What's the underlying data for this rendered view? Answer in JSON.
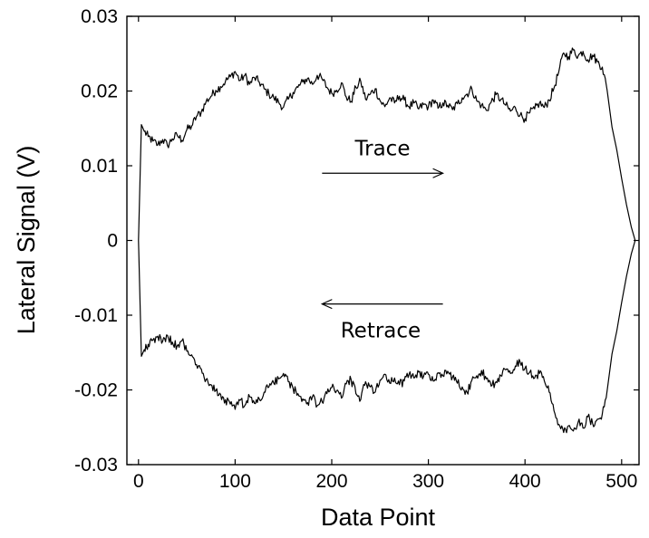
{
  "chart_data": {
    "type": "line",
    "xlabel": "Data Point",
    "ylabel": "Lateral Signal (V)",
    "xlim": [
      -12,
      518
    ],
    "ylim": [
      -0.03,
      0.03
    ],
    "xticks": [
      0,
      100,
      200,
      300,
      400,
      500
    ],
    "yticks": [
      -0.03,
      -0.02,
      -0.01,
      0,
      0.01,
      0.02,
      0.03
    ],
    "xtick_labels": [
      "0",
      "100",
      "200",
      "300",
      "400",
      "500"
    ],
    "ytick_labels": [
      "-0.03",
      "-0.02",
      "-0.01",
      "0",
      "0.01",
      "0.02",
      "0.03"
    ],
    "grid": false,
    "legend": "none",
    "line_color": "#000000",
    "annotations": [
      {
        "text": "Trace",
        "arrow": "right",
        "x_from": 190,
        "x_to": 315,
        "y": 0.009
      },
      {
        "text": "Retrace",
        "arrow": "left",
        "x_from": 315,
        "x_to": 190,
        "y": -0.0085
      }
    ],
    "series": [
      {
        "x": [
          0,
          3,
          6,
          10,
          15,
          20,
          25,
          30,
          35,
          40,
          45,
          50,
          55,
          60,
          65,
          70,
          75,
          80,
          85,
          90,
          95,
          100,
          105,
          110,
          115,
          120,
          125,
          130,
          135,
          140,
          145,
          150,
          155,
          160,
          165,
          170,
          175,
          180,
          185,
          190,
          195,
          200,
          205,
          210,
          215,
          220,
          225,
          230,
          235,
          240,
          245,
          250,
          255,
          260,
          265,
          270,
          275,
          280,
          285,
          290,
          295,
          300,
          305,
          310,
          315,
          320,
          325,
          330,
          335,
          340,
          345,
          350,
          355,
          360,
          365,
          370,
          375,
          380,
          385,
          390,
          395,
          400,
          405,
          410,
          415,
          420,
          425,
          430,
          435,
          440,
          445,
          450,
          455,
          460,
          465,
          470,
          475,
          480,
          485,
          490,
          495,
          500,
          505,
          510,
          514
        ],
        "values": [
          0,
          0.0155,
          0.0146,
          0.0139,
          0.0133,
          0.0128,
          0.0135,
          0.0127,
          0.0136,
          0.0141,
          0.0134,
          0.0148,
          0.0153,
          0.0166,
          0.0172,
          0.0186,
          0.0193,
          0.0201,
          0.0206,
          0.0213,
          0.0219,
          0.0226,
          0.0214,
          0.0221,
          0.0209,
          0.0218,
          0.0212,
          0.0203,
          0.0196,
          0.0191,
          0.0185,
          0.0178,
          0.0189,
          0.0198,
          0.0205,
          0.0212,
          0.0217,
          0.0209,
          0.0221,
          0.0216,
          0.0205,
          0.0197,
          0.0201,
          0.0211,
          0.0192,
          0.0186,
          0.0205,
          0.0213,
          0.0189,
          0.0196,
          0.0203,
          0.0187,
          0.0179,
          0.0191,
          0.0184,
          0.0193,
          0.0188,
          0.0179,
          0.0184,
          0.0176,
          0.0182,
          0.0179,
          0.0188,
          0.0177,
          0.0184,
          0.0181,
          0.0175,
          0.0183,
          0.0191,
          0.0196,
          0.0203,
          0.0187,
          0.0181,
          0.0174,
          0.0185,
          0.0195,
          0.0189,
          0.0181,
          0.0173,
          0.0178,
          0.0168,
          0.0163,
          0.0171,
          0.0176,
          0.0184,
          0.0178,
          0.0188,
          0.0204,
          0.0226,
          0.0251,
          0.0246,
          0.0255,
          0.0247,
          0.0253,
          0.0242,
          0.0248,
          0.0239,
          0.0232,
          0.0201,
          0.0152,
          0.0121,
          0.0083,
          0.0048,
          0.0018,
          0
        ]
      },
      {
        "x": [
          514,
          510,
          505,
          500,
          495,
          490,
          485,
          480,
          475,
          470,
          465,
          460,
          455,
          450,
          445,
          440,
          435,
          430,
          425,
          420,
          415,
          410,
          405,
          400,
          395,
          390,
          385,
          380,
          375,
          370,
          365,
          360,
          355,
          350,
          345,
          340,
          335,
          330,
          325,
          320,
          315,
          310,
          305,
          300,
          295,
          290,
          285,
          280,
          275,
          270,
          265,
          260,
          255,
          250,
          245,
          240,
          235,
          230,
          225,
          220,
          215,
          210,
          205,
          200,
          195,
          190,
          185,
          180,
          175,
          170,
          165,
          160,
          155,
          150,
          145,
          140,
          135,
          130,
          125,
          120,
          115,
          110,
          105,
          100,
          95,
          90,
          85,
          80,
          75,
          70,
          65,
          60,
          55,
          50,
          45,
          40,
          35,
          30,
          25,
          20,
          15,
          10,
          6,
          3,
          0
        ],
        "values": [
          0,
          -0.0018,
          -0.0048,
          -0.0083,
          -0.0121,
          -0.0152,
          -0.0201,
          -0.0232,
          -0.0239,
          -0.0245,
          -0.0236,
          -0.0251,
          -0.0243,
          -0.0255,
          -0.0248,
          -0.0257,
          -0.0246,
          -0.0228,
          -0.0203,
          -0.0188,
          -0.0178,
          -0.0184,
          -0.0176,
          -0.0171,
          -0.0163,
          -0.0168,
          -0.0178,
          -0.0173,
          -0.0181,
          -0.0189,
          -0.0195,
          -0.0185,
          -0.0174,
          -0.0181,
          -0.0187,
          -0.0203,
          -0.0196,
          -0.0191,
          -0.0183,
          -0.0175,
          -0.0181,
          -0.0177,
          -0.0188,
          -0.0179,
          -0.0182,
          -0.0176,
          -0.0184,
          -0.0179,
          -0.0188,
          -0.0193,
          -0.0184,
          -0.0191,
          -0.0179,
          -0.0187,
          -0.0203,
          -0.0196,
          -0.0189,
          -0.0213,
          -0.0205,
          -0.0186,
          -0.0192,
          -0.0211,
          -0.0201,
          -0.0197,
          -0.0205,
          -0.0216,
          -0.0221,
          -0.0209,
          -0.0217,
          -0.0212,
          -0.0205,
          -0.0198,
          -0.0189,
          -0.0178,
          -0.0185,
          -0.0191,
          -0.0196,
          -0.0203,
          -0.0212,
          -0.0218,
          -0.0209,
          -0.0221,
          -0.0214,
          -0.0226,
          -0.0219,
          -0.0213,
          -0.0206,
          -0.0201,
          -0.0193,
          -0.0186,
          -0.0172,
          -0.0166,
          -0.0153,
          -0.0148,
          -0.0134,
          -0.0141,
          -0.0136,
          -0.0127,
          -0.0135,
          -0.0128,
          -0.0133,
          -0.0139,
          -0.0146,
          -0.0155,
          0
        ]
      }
    ]
  }
}
